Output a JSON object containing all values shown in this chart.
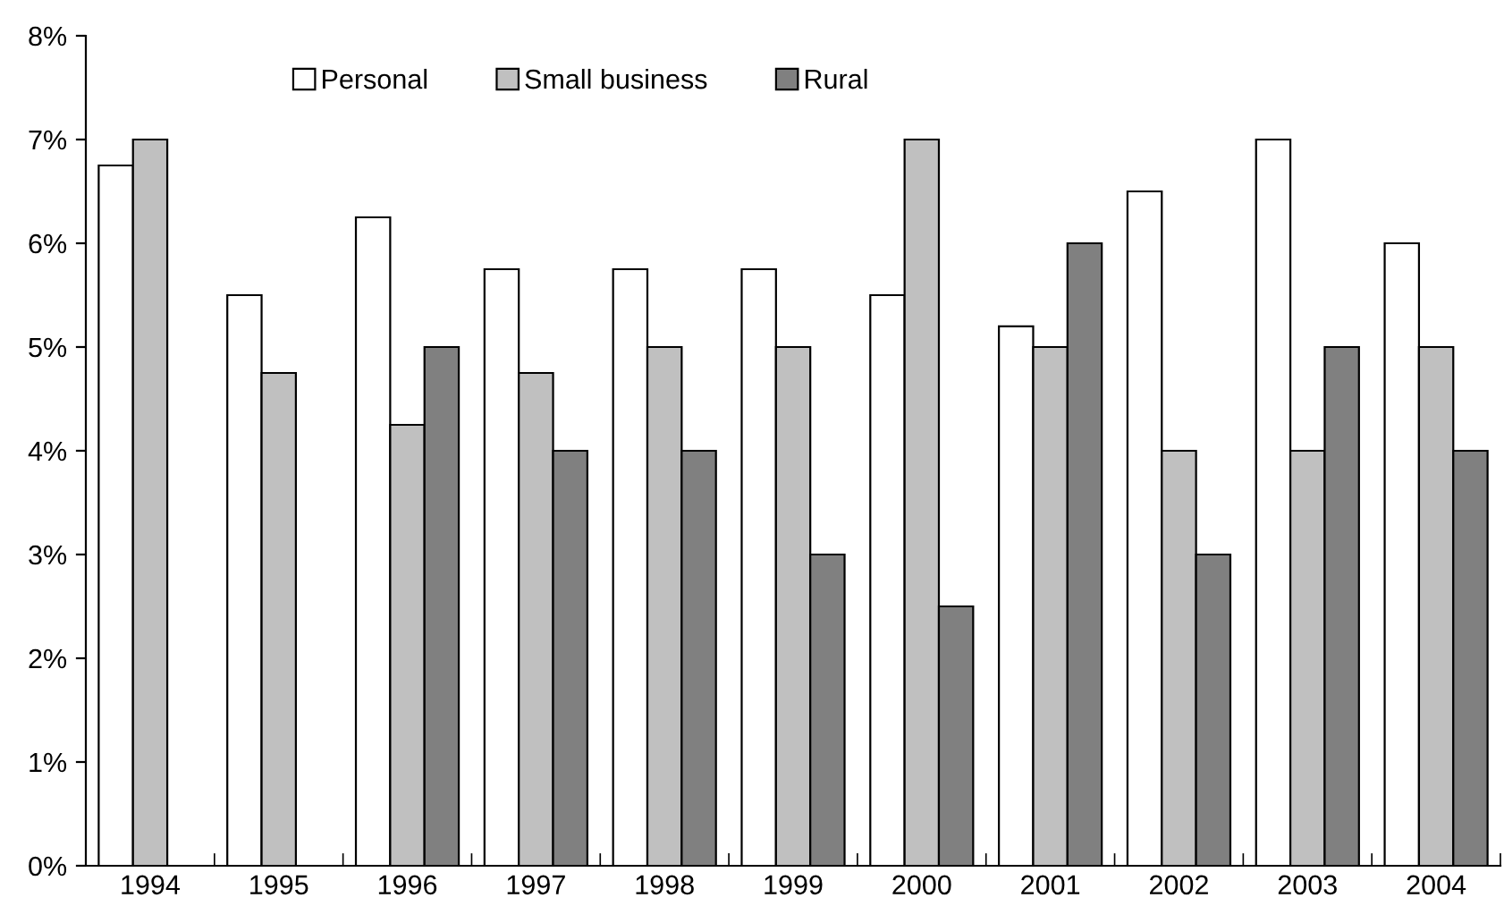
{
  "chart_data": {
    "type": "bar",
    "categories": [
      "1994",
      "1995",
      "1996",
      "1997",
      "1998",
      "1999",
      "2000",
      "2001",
      "2002",
      "2003",
      "2004"
    ],
    "series": [
      {
        "name": "Personal",
        "color": "#ffffff",
        "values": [
          6.75,
          5.5,
          6.25,
          5.75,
          5.75,
          5.75,
          5.5,
          5.2,
          6.5,
          7,
          6
        ]
      },
      {
        "name": "Small business",
        "color": "#c0c0c0",
        "values": [
          7,
          4.75,
          4.25,
          4.75,
          5,
          5,
          7,
          5,
          4,
          4,
          5
        ]
      },
      {
        "name": "Rural",
        "color": "#808080",
        "values": [
          null,
          null,
          5,
          4,
          4,
          3,
          2.5,
          6,
          3,
          5,
          4
        ]
      }
    ],
    "ylim": [
      0,
      8
    ],
    "yticks": [
      {
        "value": 0,
        "label": "0%"
      },
      {
        "value": 1,
        "label": "1%"
      },
      {
        "value": 2,
        "label": "2%"
      },
      {
        "value": 3,
        "label": "3%"
      },
      {
        "value": 4,
        "label": "4%"
      },
      {
        "value": 5,
        "label": "5%"
      },
      {
        "value": 6,
        "label": "6%"
      },
      {
        "value": 7,
        "label": "7%"
      },
      {
        "value": 8,
        "label": "8%"
      }
    ],
    "grid": false,
    "legend": "top"
  }
}
